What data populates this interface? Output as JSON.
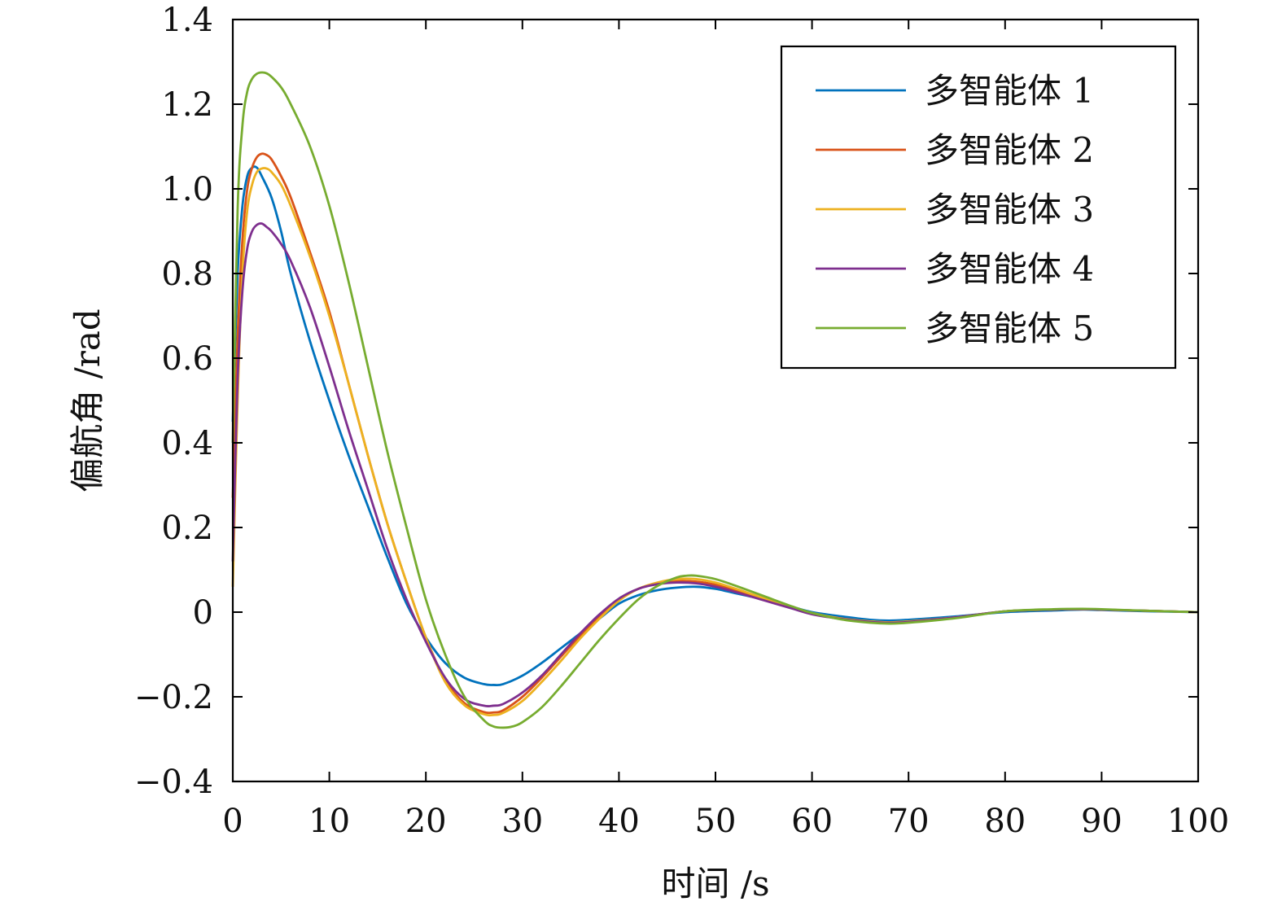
{
  "chart_data": {
    "type": "line",
    "xlabel": "时间 /s",
    "ylabel": "偏航角 /rad",
    "xlim": [
      0,
      100
    ],
    "ylim": [
      -0.4,
      1.4
    ],
    "xticks": [
      0,
      10,
      20,
      30,
      40,
      50,
      60,
      70,
      80,
      90,
      100
    ],
    "yticks": [
      -0.4,
      -0.2,
      0,
      0.2,
      0.4,
      0.6,
      0.8,
      1.0,
      1.2,
      1.4
    ],
    "xtick_labels": [
      "0",
      "10",
      "20",
      "30",
      "40",
      "50",
      "60",
      "70",
      "80",
      "90",
      "100"
    ],
    "ytick_labels": [
      "−0.4",
      "−0.2",
      "0",
      "0.2",
      "0.4",
      "0.6",
      "0.8",
      "1.0",
      "1.2",
      "1.4"
    ],
    "grid": false,
    "legend_position": "top-right",
    "series": [
      {
        "name": "多智能体 1",
        "color": "#0072BD",
        "x": [
          0,
          0.5,
          1,
          1.5,
          2,
          2.5,
          3,
          4,
          5,
          6,
          8,
          10,
          12,
          14,
          16,
          18,
          20,
          22,
          24,
          26,
          27,
          28,
          30,
          32,
          34,
          36,
          38,
          40,
          42,
          44,
          46,
          48,
          50,
          52,
          55,
          58,
          60,
          63,
          66,
          68,
          70,
          75,
          80,
          85,
          88,
          90,
          95,
          100
        ],
        "y": [
          0.45,
          0.8,
          0.96,
          1.03,
          1.05,
          1.05,
          1.03,
          0.98,
          0.9,
          0.8,
          0.64,
          0.5,
          0.37,
          0.25,
          0.13,
          0.02,
          -0.06,
          -0.12,
          -0.155,
          -0.17,
          -0.172,
          -0.17,
          -0.15,
          -0.12,
          -0.085,
          -0.05,
          -0.015,
          0.02,
          0.04,
          0.052,
          0.058,
          0.06,
          0.055,
          0.045,
          0.03,
          0.012,
          0.0,
          -0.01,
          -0.018,
          -0.02,
          -0.018,
          -0.01,
          0.0,
          0.004,
          0.006,
          0.005,
          0.002,
          0.0
        ]
      },
      {
        "name": "多智能体 2",
        "color": "#D95319",
        "x": [
          0,
          0.5,
          1,
          1.5,
          2,
          2.5,
          3,
          3.5,
          4,
          5,
          6,
          8,
          10,
          12,
          14,
          16,
          18,
          20,
          22,
          24,
          26,
          27,
          28,
          30,
          32,
          34,
          36,
          38,
          40,
          42,
          44,
          46,
          48,
          50,
          52,
          55,
          58,
          60,
          63,
          66,
          68,
          70,
          75,
          80,
          85,
          88,
          90,
          95,
          100
        ],
        "y": [
          0.27,
          0.65,
          0.88,
          1.0,
          1.05,
          1.075,
          1.083,
          1.08,
          1.07,
          1.03,
          0.98,
          0.85,
          0.71,
          0.54,
          0.37,
          0.21,
          0.07,
          -0.06,
          -0.16,
          -0.215,
          -0.236,
          -0.237,
          -0.232,
          -0.2,
          -0.155,
          -0.105,
          -0.055,
          -0.01,
          0.03,
          0.055,
          0.068,
          0.073,
          0.072,
          0.065,
          0.052,
          0.03,
          0.01,
          -0.003,
          -0.015,
          -0.022,
          -0.024,
          -0.022,
          -0.012,
          0.002,
          0.006,
          0.007,
          0.006,
          0.003,
          0.0
        ]
      },
      {
        "name": "多智能体 3",
        "color": "#EDB120",
        "x": [
          0,
          0.5,
          1,
          1.5,
          2,
          2.5,
          3,
          3.5,
          4,
          5,
          6,
          8,
          10,
          12,
          14,
          16,
          18,
          20,
          22,
          24,
          26,
          27,
          28,
          30,
          32,
          34,
          36,
          38,
          40,
          42,
          44,
          46,
          48,
          50,
          52,
          55,
          58,
          60,
          63,
          66,
          68,
          70,
          75,
          80,
          85,
          88,
          90,
          95,
          100
        ],
        "y": [
          0.06,
          0.5,
          0.8,
          0.95,
          1.01,
          1.04,
          1.048,
          1.048,
          1.04,
          1.01,
          0.96,
          0.84,
          0.7,
          0.54,
          0.37,
          0.21,
          0.07,
          -0.06,
          -0.165,
          -0.22,
          -0.241,
          -0.243,
          -0.238,
          -0.21,
          -0.165,
          -0.115,
          -0.062,
          -0.015,
          0.027,
          0.055,
          0.07,
          0.078,
          0.078,
          0.07,
          0.056,
          0.033,
          0.012,
          -0.002,
          -0.015,
          -0.022,
          -0.024,
          -0.022,
          -0.012,
          0.002,
          0.006,
          0.007,
          0.006,
          0.003,
          0.0
        ]
      },
      {
        "name": "多智能体 4",
        "color": "#7E2F8E",
        "x": [
          0,
          0.5,
          1,
          1.5,
          2,
          2.5,
          3,
          3.5,
          4,
          5,
          6,
          8,
          10,
          12,
          14,
          16,
          18,
          20,
          22,
          24,
          26,
          27,
          28,
          30,
          32,
          34,
          36,
          38,
          40,
          42,
          44,
          46,
          48,
          50,
          52,
          55,
          58,
          60,
          63,
          66,
          68,
          70,
          75,
          80,
          85,
          88,
          90,
          95,
          100
        ],
        "y": [
          0.12,
          0.55,
          0.76,
          0.86,
          0.9,
          0.915,
          0.918,
          0.91,
          0.9,
          0.87,
          0.83,
          0.72,
          0.58,
          0.43,
          0.29,
          0.15,
          0.03,
          -0.07,
          -0.155,
          -0.205,
          -0.221,
          -0.221,
          -0.217,
          -0.19,
          -0.15,
          -0.1,
          -0.05,
          -0.005,
          0.032,
          0.055,
          0.066,
          0.07,
          0.068,
          0.06,
          0.048,
          0.028,
          0.008,
          -0.005,
          -0.016,
          -0.023,
          -0.025,
          -0.023,
          -0.012,
          0.002,
          0.006,
          0.007,
          0.006,
          0.003,
          0.0
        ]
      },
      {
        "name": "多智能体 5",
        "color": "#77AC30",
        "x": [
          0,
          0.5,
          1,
          1.5,
          2,
          2.5,
          3,
          3.5,
          4,
          5,
          6,
          8,
          10,
          12,
          14,
          16,
          18,
          20,
          22,
          24,
          26,
          27,
          28,
          29,
          30,
          32,
          34,
          36,
          38,
          40,
          42,
          44,
          46,
          47,
          48,
          50,
          52,
          55,
          58,
          60,
          63,
          66,
          68,
          70,
          75,
          80,
          85,
          88,
          90,
          95,
          100
        ],
        "y": [
          0.4,
          0.95,
          1.15,
          1.23,
          1.26,
          1.272,
          1.275,
          1.273,
          1.265,
          1.24,
          1.2,
          1.1,
          0.96,
          0.78,
          0.58,
          0.38,
          0.2,
          0.03,
          -0.1,
          -0.2,
          -0.255,
          -0.27,
          -0.273,
          -0.27,
          -0.26,
          -0.225,
          -0.175,
          -0.12,
          -0.065,
          -0.015,
          0.03,
          0.062,
          0.082,
          0.086,
          0.086,
          0.078,
          0.063,
          0.038,
          0.013,
          -0.002,
          -0.017,
          -0.025,
          -0.027,
          -0.025,
          -0.014,
          0.002,
          0.007,
          0.008,
          0.007,
          0.003,
          0.0
        ]
      }
    ]
  }
}
